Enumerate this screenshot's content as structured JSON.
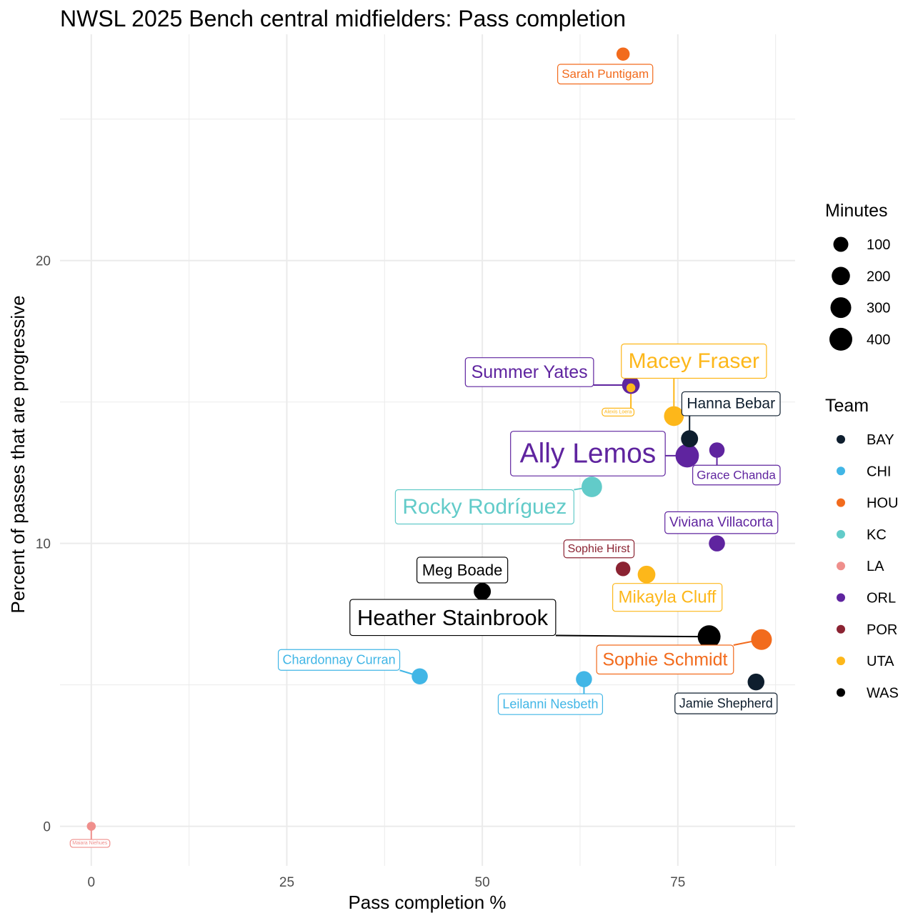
{
  "chart_data": {
    "type": "scatter",
    "title": "NWSL 2025 Bench central midfielders: Pass completion",
    "xlabel": "Pass completion %",
    "ylabel": "Percent of passes that are progressive",
    "xlim": [
      -4,
      90
    ],
    "ylim": [
      -1.4,
      28
    ],
    "xticks": [
      0,
      25,
      50,
      75
    ],
    "yticks": [
      0,
      10,
      20
    ],
    "grid": true,
    "legend_position": "right",
    "size_legend": {
      "title": "Minutes",
      "values": [
        100,
        200,
        300,
        400
      ]
    },
    "color_legend": {
      "title": "Team",
      "entries": [
        {
          "team": "BAY",
          "color": "#0e1e2e"
        },
        {
          "team": "CHI",
          "color": "#41b6e6"
        },
        {
          "team": "HOU",
          "color": "#f26b1d"
        },
        {
          "team": "KC",
          "color": "#62cbc9"
        },
        {
          "team": "LA",
          "color": "#ef8f8c"
        },
        {
          "team": "ORL",
          "color": "#5f249f"
        },
        {
          "team": "POR",
          "color": "#8b2332"
        },
        {
          "team": "UTA",
          "color": "#fdb71a"
        },
        {
          "team": "WAS",
          "color": "#000000"
        }
      ]
    },
    "points": [
      {
        "name": "Sarah Puntigam",
        "team": "HOU",
        "x": 68,
        "y": 27.3,
        "minutes": 60
      },
      {
        "name": "Summer Yates",
        "team": "ORL",
        "x": 69,
        "y": 15.6,
        "minutes": 180
      },
      {
        "name": "Alexis Loera",
        "team": "UTA",
        "x": 69,
        "y": 15.5,
        "minutes": 5
      },
      {
        "name": "Macey Fraser",
        "team": "UTA",
        "x": 74.5,
        "y": 14.5,
        "minutes": 260
      },
      {
        "name": "Hanna Bebar",
        "team": "BAY",
        "x": 76.5,
        "y": 13.7,
        "minutes": 160
      },
      {
        "name": "Ally Lemos",
        "team": "ORL",
        "x": 76.2,
        "y": 13.1,
        "minutes": 430
      },
      {
        "name": "Grace Chanda",
        "team": "ORL",
        "x": 80,
        "y": 13.3,
        "minutes": 110
      },
      {
        "name": "Rocky Rodríguez",
        "team": "KC",
        "x": 64,
        "y": 12.0,
        "minutes": 290
      },
      {
        "name": "Viviana Villacorta",
        "team": "ORL",
        "x": 80,
        "y": 10.0,
        "minutes": 130
      },
      {
        "name": "Sophie Hirst",
        "team": "POR",
        "x": 68,
        "y": 9.1,
        "minutes": 90
      },
      {
        "name": "Mikayla Cluff",
        "team": "UTA",
        "x": 71,
        "y": 8.9,
        "minutes": 180
      },
      {
        "name": "Meg Boade",
        "team": "WAS",
        "x": 50,
        "y": 8.3,
        "minutes": 160
      },
      {
        "name": "Heather Stainbrook",
        "team": "WAS",
        "x": 79,
        "y": 6.7,
        "minutes": 400
      },
      {
        "name": "Sophie Schmidt",
        "team": "HOU",
        "x": 85.7,
        "y": 6.6,
        "minutes": 300
      },
      {
        "name": "Chardonnay Curran",
        "team": "CHI",
        "x": 42,
        "y": 5.3,
        "minutes": 130
      },
      {
        "name": "Leilanni Nesbeth",
        "team": "CHI",
        "x": 63,
        "y": 5.2,
        "minutes": 130
      },
      {
        "name": "Jamie Shepherd",
        "team": "BAY",
        "x": 85,
        "y": 5.1,
        "minutes": 150
      },
      {
        "name": "Maiara Niehues",
        "team": "LA",
        "x": 0,
        "y": 0,
        "minutes": 5
      }
    ]
  }
}
